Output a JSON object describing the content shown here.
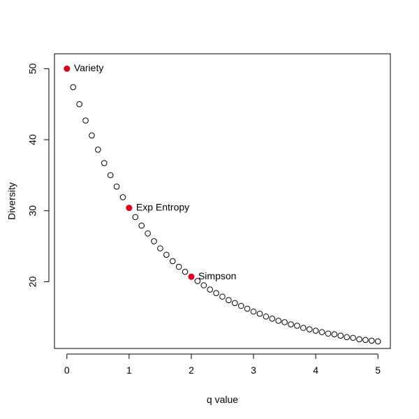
{
  "chart_data": {
    "type": "scatter",
    "xlabel": "q value",
    "ylabel": "Diversity",
    "xlim": [
      -0.2,
      5.2
    ],
    "ylim": [
      10.6,
      52.1
    ],
    "x_ticks": [
      "0",
      "1",
      "2",
      "3",
      "4",
      "5"
    ],
    "y_ticks": [
      "20",
      "30",
      "40",
      "50"
    ],
    "grid": false,
    "series": [
      {
        "marker": "open-circle",
        "color": "#000000",
        "points": [
          [
            0.0,
            50.0
          ],
          [
            0.1,
            47.4
          ],
          [
            0.2,
            45.0
          ],
          [
            0.3,
            42.7
          ],
          [
            0.4,
            40.6
          ],
          [
            0.5,
            38.6
          ],
          [
            0.6,
            36.7
          ],
          [
            0.7,
            35.0
          ],
          [
            0.8,
            33.4
          ],
          [
            0.9,
            31.9
          ],
          [
            1.0,
            30.4
          ],
          [
            1.1,
            29.1
          ],
          [
            1.2,
            27.9
          ],
          [
            1.3,
            26.8
          ],
          [
            1.4,
            25.7
          ],
          [
            1.5,
            24.7
          ],
          [
            1.6,
            23.8
          ],
          [
            1.7,
            22.9
          ],
          [
            1.8,
            22.1
          ],
          [
            1.9,
            21.4
          ],
          [
            2.0,
            20.7
          ],
          [
            2.1,
            20.1
          ],
          [
            2.2,
            19.5
          ],
          [
            2.3,
            18.9
          ],
          [
            2.4,
            18.4
          ],
          [
            2.5,
            17.9
          ],
          [
            2.6,
            17.4
          ],
          [
            2.7,
            17.0
          ],
          [
            2.8,
            16.6
          ],
          [
            2.9,
            16.2
          ],
          [
            3.0,
            15.8
          ],
          [
            3.1,
            15.5
          ],
          [
            3.2,
            15.1
          ],
          [
            3.3,
            14.8
          ],
          [
            3.4,
            14.5
          ],
          [
            3.5,
            14.3
          ],
          [
            3.6,
            14.0
          ],
          [
            3.7,
            13.8
          ],
          [
            3.8,
            13.5
          ],
          [
            3.9,
            13.3
          ],
          [
            4.0,
            13.1
          ],
          [
            4.1,
            12.9
          ],
          [
            4.2,
            12.7
          ],
          [
            4.3,
            12.6
          ],
          [
            4.4,
            12.4
          ],
          [
            4.5,
            12.2
          ],
          [
            4.6,
            12.1
          ],
          [
            4.7,
            11.9
          ],
          [
            4.8,
            11.8
          ],
          [
            4.9,
            11.7
          ],
          [
            5.0,
            11.6
          ]
        ]
      }
    ],
    "highlights": [
      {
        "x": 0,
        "y": 50.0,
        "label": "Variety",
        "color": "#e0001b"
      },
      {
        "x": 1,
        "y": 30.4,
        "label": "Exp Entropy",
        "color": "#e0001b"
      },
      {
        "x": 2,
        "y": 20.7,
        "label": "Simpson",
        "color": "#e0001b"
      }
    ]
  }
}
